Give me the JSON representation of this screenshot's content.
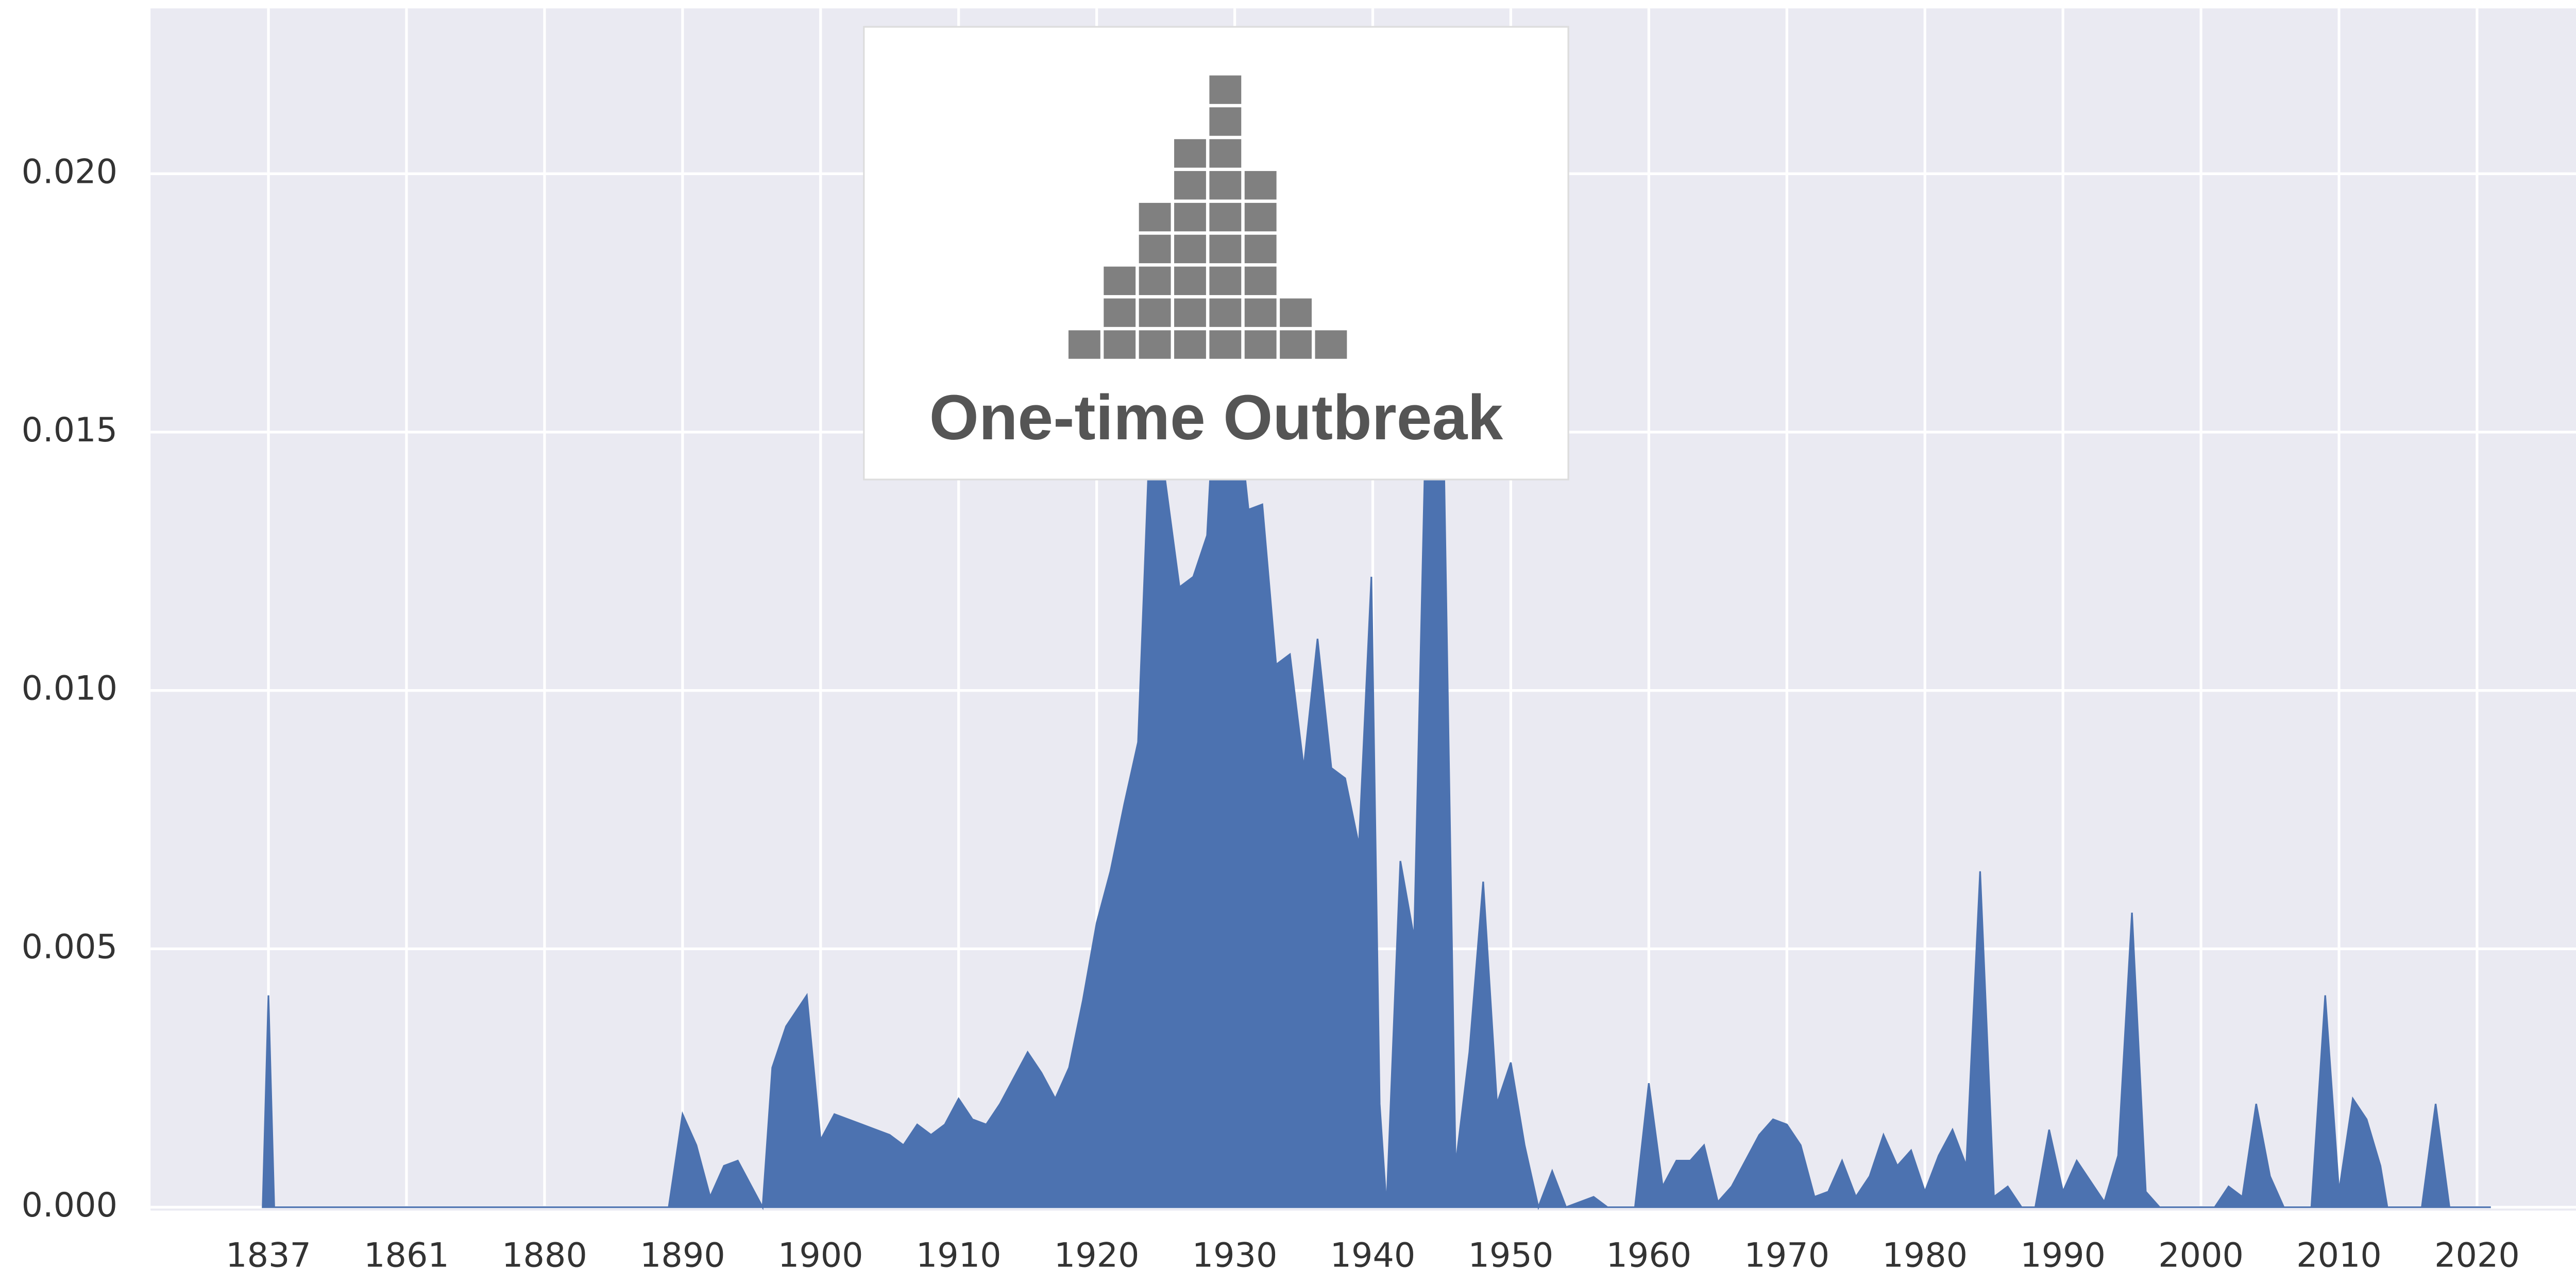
{
  "chart_data": {
    "type": "area",
    "color": "#4c72b0",
    "grid": true,
    "annotation": "One-time Outbreak",
    "x": [
      1836,
      1837,
      1838,
      1889,
      1890,
      1891,
      1892,
      1893,
      1894,
      1895,
      1895.8,
      1896.5,
      1897.5,
      1899,
      1900,
      1901,
      1902,
      1903,
      1904,
      1905,
      1906,
      1907,
      1908,
      1909,
      1910,
      1911,
      1912,
      1913,
      1914,
      1915,
      1916,
      1917,
      1918,
      1919,
      1920,
      1921,
      1922,
      1923,
      1924,
      1925,
      1926,
      1927,
      1928,
      1929,
      1930,
      1931,
      1932,
      1933,
      1934,
      1935,
      1936,
      1937,
      1938,
      1939,
      1939.9,
      1940.5,
      1941,
      1942,
      1943,
      1944,
      1945,
      1946,
      1947,
      1948,
      1949,
      1950,
      1951,
      1952,
      1953,
      1954,
      1956,
      1957,
      1959,
      1960,
      1961,
      1962,
      1963,
      1964,
      1965,
      1966,
      1968,
      1969,
      1970,
      1971,
      1972,
      1973,
      1974,
      1975,
      1976,
      1977,
      1978,
      1979,
      1980,
      1981,
      1982,
      1983,
      1984,
      1985,
      1986,
      1987,
      1988,
      1989,
      1990,
      1991,
      1992,
      1993,
      1994,
      1995,
      1996,
      1997,
      2001,
      2002,
      2003,
      2004,
      2005,
      2006,
      2008,
      2009,
      2010,
      2011,
      2012,
      2013,
      2013.5,
      2016,
      2017,
      2018,
      2021
    ],
    "values": [
      0,
      0.0041,
      0,
      0,
      0.0018,
      0.0012,
      0.0002,
      0.0008,
      0.0009,
      0.0004,
      0,
      0.0027,
      0.0035,
      0.0041,
      0.0013,
      0.0018,
      0.0017,
      0.0016,
      0.0015,
      0.0014,
      0.0012,
      0.0016,
      0.0014,
      0.0016,
      0.0021,
      0.0017,
      0.0016,
      0.002,
      0.0025,
      0.003,
      0.0026,
      0.0021,
      0.0027,
      0.004,
      0.0055,
      0.0065,
      0.0078,
      0.009,
      0.016,
      0.014,
      0.012,
      0.0122,
      0.013,
      0.018,
      0.016,
      0.0135,
      0.0136,
      0.0105,
      0.0107,
      0.0085,
      0.011,
      0.0085,
      0.0083,
      0.007,
      0.0122,
      0.002,
      0,
      0.0067,
      0.0052,
      0.017,
      0.017,
      0.0008,
      0.003,
      0.0063,
      0.002,
      0.0028,
      0.0012,
      0,
      0.0007,
      0,
      0.0002,
      0,
      0,
      0.0024,
      0.0004,
      0.0009,
      0.0009,
      0.0012,
      0.0001,
      0.0004,
      0.0014,
      0.0017,
      0.0016,
      0.0012,
      0.0002,
      0.0003,
      0.0009,
      0.0002,
      0.0006,
      0.0014,
      0.0008,
      0.0011,
      0.0003,
      0.001,
      0.0015,
      0.0008,
      0.0065,
      0.0002,
      0.0004,
      0,
      0,
      0.0015,
      0.0003,
      0.0009,
      0.0005,
      0.0001,
      0.001,
      0.0057,
      0.0003,
      0,
      0,
      0.0004,
      0.0002,
      0.002,
      0.0006,
      0,
      0,
      0.0041,
      0.0003,
      0.0021,
      0.0017,
      0.0008,
      0,
      0,
      0.002,
      0,
      0
    ],
    "xlim": [
      1816.5,
      2028.9
    ],
    "xticks": [
      1837,
      1861,
      1880,
      1890,
      1900,
      1910,
      1920,
      1930,
      1940,
      1950,
      1960,
      1970,
      1980,
      1990,
      2000,
      2010,
      2020
    ],
    "ylim": [
      0,
      0.0232
    ],
    "yticks": [
      {
        "value": 0,
        "label": "0.000"
      },
      {
        "value": 0.005,
        "label": "0.005"
      },
      {
        "value": 0.01,
        "label": "0.010"
      },
      {
        "value": 0.015,
        "label": "0.015"
      },
      {
        "value": 0.02,
        "label": "0.020"
      }
    ]
  }
}
